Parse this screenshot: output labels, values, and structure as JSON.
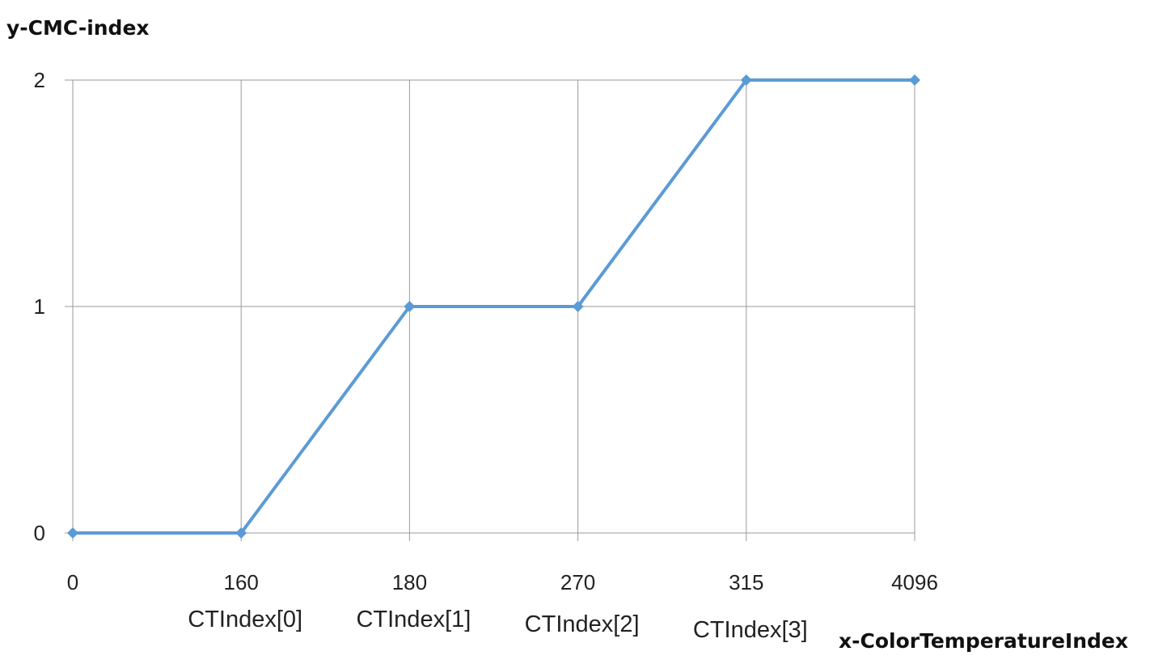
{
  "chart_data": {
    "type": "line",
    "title": "",
    "ylabel": "y-CMC-index",
    "xlabel": "x-ColorTemperatureIndex",
    "x_tick_labels": [
      "0",
      "160",
      "180",
      "270",
      "315",
      "4096"
    ],
    "x_category_labels": [
      "",
      "",
      "CTIndex[0]",
      "CTIndex[1]",
      "CTIndex[2]",
      "CTIndex[3]"
    ],
    "y_tick_labels": [
      "0",
      "1",
      "2"
    ],
    "ylim": [
      0,
      2
    ],
    "grid": true,
    "legend": "none",
    "series": [
      {
        "color": "#5B9BD5",
        "marker": "diamond",
        "x": [
          0,
          160,
          180,
          270,
          315,
          4096
        ],
        "y": [
          0,
          0,
          1,
          1,
          2,
          2
        ]
      }
    ]
  }
}
